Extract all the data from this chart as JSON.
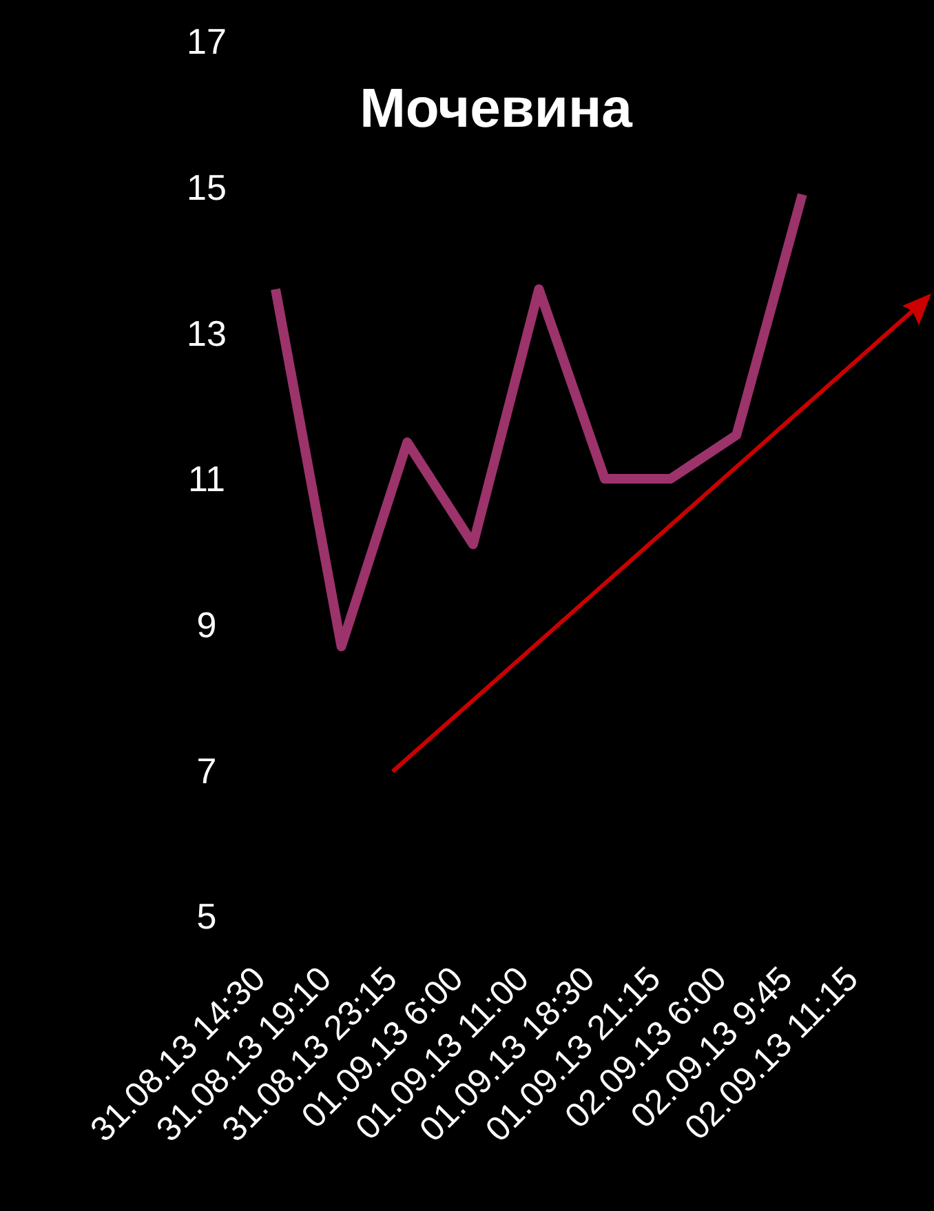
{
  "chart_data": {
    "type": "line",
    "title": "Мочевина",
    "categories": [
      "31.08.13 14:30",
      "31.08.13 19:10",
      "31.08.13 23:15",
      "01.09.13 6:00",
      "01.09.13 11:00",
      "01.09.13 18:30",
      "01.09.13 21:15",
      "02.09.13 6:00",
      "02.09.13 9:45",
      "02.09.13 11:15"
    ],
    "series": [
      {
        "color": "#9c336b",
        "values": [
          13.6,
          8.7,
          11.5,
          10.1,
          13.6,
          11.0,
          11.0,
          11.6,
          14.9,
          null
        ]
      }
    ],
    "ylim": [
      5,
      17
    ],
    "yticks": [
      5,
      7,
      9,
      11,
      13,
      15,
      17
    ]
  }
}
